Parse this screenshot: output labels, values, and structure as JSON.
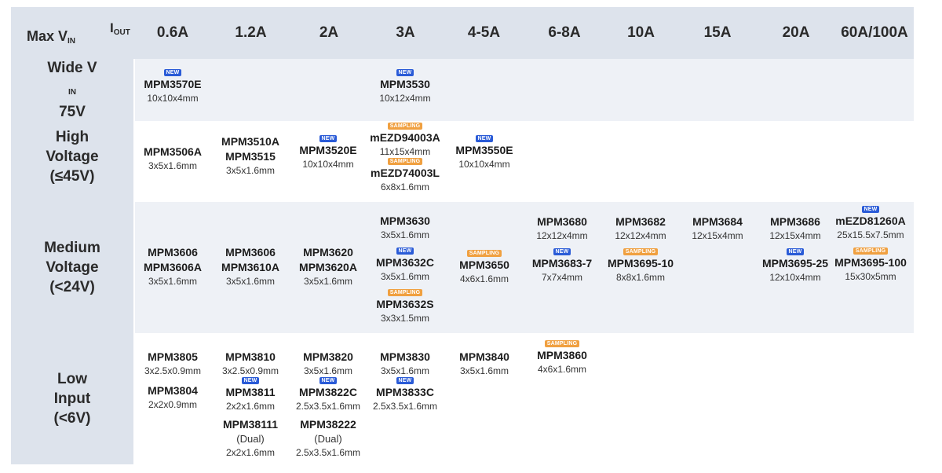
{
  "header": {
    "max_vin": "Max V",
    "max_vin_sub": "IN",
    "iout": "I",
    "iout_sub": "OUT",
    "currents": [
      "0.6A",
      "1.2A",
      "2A",
      "3A",
      "4-5A",
      "6-8A",
      "10A",
      "15A",
      "20A",
      "60A/100A"
    ]
  },
  "rows": {
    "wide": {
      "line1": "Wide V",
      "line1_sub": "IN",
      "line2": "75V"
    },
    "high": {
      "line1": "High",
      "line2": "Voltage",
      "line3": "(≤45V)"
    },
    "medium": {
      "line1": "Medium",
      "line2": "Voltage",
      "line3": "(<24V)"
    },
    "low": {
      "line1": "Low",
      "line2": "Input",
      "line3": "(<6V)"
    }
  },
  "badges": {
    "new": "NEW",
    "sampling": "SAMPLING"
  },
  "colors": {
    "header_bg": "#dde3ec",
    "alt_row_bg": "#eef1f6",
    "new_badge": "#2a5bd7",
    "sampling_badge": "#f0a040"
  },
  "cells": {
    "wide_06": {
      "part": "MPM3570E",
      "pkg": "10x10x4mm"
    },
    "wide_3": {
      "part": "MPM3530",
      "pkg": "10x12x4mm"
    },
    "high_06": {
      "part": "MPM3506A",
      "pkg": "3x5x1.6mm"
    },
    "high_12": {
      "part1": "MPM3510A",
      "part2": "MPM3515",
      "pkg": "3x5x1.6mm"
    },
    "high_2": {
      "part": "MPM3520E",
      "pkg": "10x10x4mm"
    },
    "high_3a": {
      "part": "mEZD94003A",
      "pkg": "11x15x4mm"
    },
    "high_3b": {
      "part": "mEZD74003L",
      "pkg": "6x8x1.6mm"
    },
    "high_45": {
      "part": "MPM3550E",
      "pkg": "10x10x4mm"
    },
    "med_06": {
      "part1": "MPM3606",
      "part2": "MPM3606A",
      "pkg": "3x5x1.6mm"
    },
    "med_12": {
      "part1": "MPM3606",
      "part2": "MPM3610A",
      "pkg": "3x5x1.6mm"
    },
    "med_2": {
      "part1": "MPM3620",
      "part2": "MPM3620A",
      "pkg": "3x5x1.6mm"
    },
    "med_3a": {
      "part": "MPM3630",
      "pkg": "3x5x1.6mm"
    },
    "med_3b": {
      "part": "MPM3632C",
      "pkg": "3x5x1.6mm"
    },
    "med_3c": {
      "part": "MPM3632S",
      "pkg": "3x3x1.5mm"
    },
    "med_45": {
      "part": "MPM3650",
      "pkg": "4x6x1.6mm"
    },
    "med_68a": {
      "part": "MPM3680",
      "pkg": "12x12x4mm"
    },
    "med_68b": {
      "part": "MPM3683-7",
      "pkg": "7x7x4mm"
    },
    "med_10a": {
      "part": "MPM3682",
      "pkg": "12x12x4mm"
    },
    "med_10b": {
      "part": "MPM3695-10",
      "pkg": "8x8x1.6mm"
    },
    "med_15": {
      "part": "MPM3684",
      "pkg": "12x15x4mm"
    },
    "med_20a": {
      "part": "MPM3686",
      "pkg": "12x15x4mm"
    },
    "med_20b": {
      "part": "MPM3695-25",
      "pkg": "12x10x4mm"
    },
    "med_60a": {
      "part": "mEZD81260A",
      "pkg": "25x15.5x7.5mm"
    },
    "med_60b": {
      "part": "MPM3695-100",
      "pkg": "15x30x5mm"
    },
    "low_06a": {
      "part": "MPM3805",
      "pkg": "3x2.5x0.9mm"
    },
    "low_06b": {
      "part": "MPM3804",
      "pkg": "2x2x0.9mm"
    },
    "low_12a": {
      "part": "MPM3810",
      "pkg": "3x2.5x0.9mm"
    },
    "low_12b": {
      "part": "MPM3811",
      "pkg": "2x2x1.6mm"
    },
    "low_12c": {
      "part": "MPM38111",
      "note": "(Dual)",
      "pkg": "2x2x1.6mm"
    },
    "low_2a": {
      "part": "MPM3820",
      "pkg": "3x5x1.6mm"
    },
    "low_2b": {
      "part": "MPM3822C",
      "pkg": "2.5x3.5x1.6mm"
    },
    "low_2c": {
      "part": "MPM38222",
      "note": "(Dual)",
      "pkg": "2.5x3.5x1.6mm"
    },
    "low_3a": {
      "part": "MPM3830",
      "pkg": "3x5x1.6mm"
    },
    "low_3b": {
      "part": "MPM3833C",
      "pkg": "2.5x3.5x1.6mm"
    },
    "low_45": {
      "part": "MPM3840",
      "pkg": "3x5x1.6mm"
    },
    "low_68": {
      "part": "MPM3860",
      "pkg": "4x6x1.6mm"
    }
  }
}
